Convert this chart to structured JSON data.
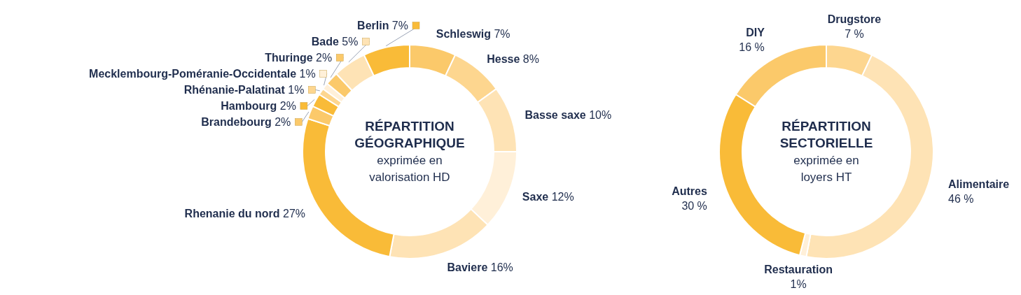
{
  "chart_data": [
    {
      "type": "donut",
      "title": "RÉPARTITION GÉOGRAPHIQUE",
      "subtitle": "exprimée en valorisation HD",
      "categories": [
        "Schleswig",
        "Hesse",
        "Basse saxe",
        "Saxe",
        "Baviere",
        "Rhenanie du nord",
        "Brandebourg",
        "Hambourg",
        "Rhénanie-Palatinat",
        "Mecklembourg-Poméranie-Occidentale",
        "Thuringe",
        "Bade",
        "Berlin"
      ],
      "values": [
        7,
        8,
        10,
        12,
        16,
        27,
        2,
        2,
        1,
        1,
        2,
        5,
        7
      ],
      "value_labels": [
        "7%",
        "8%",
        "10%",
        "12%",
        "16%",
        "27%",
        "2%",
        "2%",
        "1%",
        "1%",
        "2%",
        "5%",
        "7%"
      ],
      "colors": [
        "#fbc96a",
        "#fdd68f",
        "#fee3b5",
        "#fff0d9",
        "#fee3b5",
        "#f9bb38",
        "#fbc96a",
        "#f9bb38",
        "#fdd68f",
        "#fff0d9",
        "#fbc96a",
        "#fee3b5",
        "#f9bb38"
      ],
      "legend": "left"
    },
    {
      "type": "donut",
      "title": "RÉPARTITION SECTORIELLE",
      "subtitle": "exprimée en loyers HT",
      "categories": [
        "Drugstore",
        "Alimentaire",
        "Restauration",
        "Autres",
        "DIY"
      ],
      "values": [
        7,
        46,
        1,
        30,
        16
      ],
      "value_labels": [
        "7 %",
        "46 %",
        "1%",
        "30 %",
        "16 %"
      ],
      "colors": [
        "#fdd68f",
        "#fee3b5",
        "#fff0d9",
        "#f9bb38",
        "#fbc96a"
      ]
    }
  ]
}
